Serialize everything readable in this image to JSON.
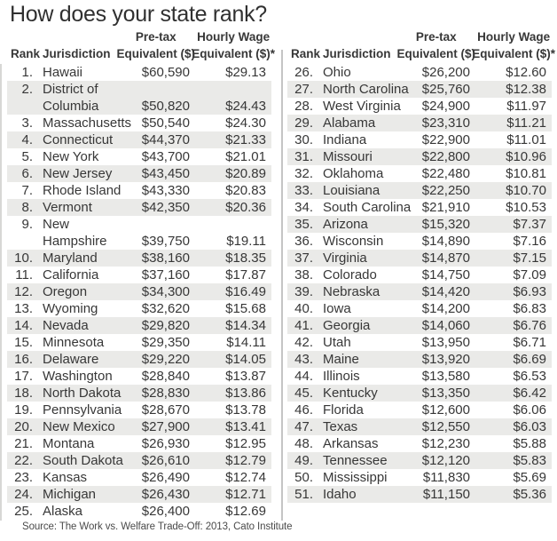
{
  "title": "How does your state rank?",
  "source": "Source: The Work vs. Welfare Trade-Off: 2013, Cato Institute",
  "header": {
    "rank": "Rank",
    "jurisdiction": "Jurisdiction",
    "pretax_line1": "Pre-tax",
    "pretax_line2": "Equivalent ($)",
    "hourly_line1": "Hourly Wage",
    "hourly_line2": "Equivalent ($)*"
  },
  "colors": {
    "background": "#ffffff",
    "title": "#303030",
    "text": "#373737",
    "stripe": "#eaeae8",
    "divider": "#c4c4c4",
    "edge_rule": "#d7d7d5",
    "source_text": "#4a4a4a"
  },
  "chart_data": {
    "type": "table",
    "title": "How does your state rank?",
    "columns": [
      "Rank",
      "Jurisdiction",
      "Pre-tax Equivalent ($)",
      "Hourly Wage Equivalent ($)*"
    ],
    "left_rows": [
      [
        "1.",
        "Hawaii",
        "$60,590",
        "$29.13"
      ],
      [
        "2.",
        "District of\nColumbia",
        "$50,820",
        "$24.43"
      ],
      [
        "3.",
        "Massachusetts",
        "$50,540",
        "$24.30"
      ],
      [
        "4.",
        "Connecticut",
        "$44,370",
        "$21.33"
      ],
      [
        "5.",
        "New York",
        "$43,700",
        "$21.01"
      ],
      [
        "6.",
        "New Jersey",
        "$43,450",
        "$20.89"
      ],
      [
        "7.",
        "Rhode Island",
        "$43,330",
        "$20.83"
      ],
      [
        "8.",
        "Vermont",
        "$42,350",
        "$20.36"
      ],
      [
        "9.",
        "New\nHampshire",
        "$39,750",
        "$19.11"
      ],
      [
        "10.",
        "Maryland",
        "$38,160",
        "$18.35"
      ],
      [
        "11.",
        "California",
        "$37,160",
        "$17.87"
      ],
      [
        "12.",
        "Oregon",
        "$34,300",
        "$16.49"
      ],
      [
        "13.",
        "Wyoming",
        "$32,620",
        "$15.68"
      ],
      [
        "14.",
        "Nevada",
        "$29,820",
        "$14.34"
      ],
      [
        "15.",
        "Minnesota",
        "$29,350",
        "$14.11"
      ],
      [
        "16.",
        "Delaware",
        "$29,220",
        "$14.05"
      ],
      [
        "17.",
        "Washington",
        "$28,840",
        "$13.87"
      ],
      [
        "18.",
        "North Dakota",
        "$28,830",
        "$13.86"
      ],
      [
        "19.",
        "Pennsylvania",
        "$28,670",
        "$13.78"
      ],
      [
        "20.",
        "New Mexico",
        "$27,900",
        "$13.41"
      ],
      [
        "21.",
        "Montana",
        "$26,930",
        "$12.95"
      ],
      [
        "22.",
        "South Dakota",
        "$26,610",
        "$12.79"
      ],
      [
        "23.",
        "Kansas",
        "$26,490",
        "$12.74"
      ],
      [
        "24.",
        "Michigan",
        "$26,430",
        "$12.71"
      ],
      [
        "25.",
        "Alaska",
        "$26,400",
        "$12.69"
      ]
    ],
    "right_rows": [
      [
        "26.",
        "Ohio",
        "$26,200",
        "$12.60"
      ],
      [
        "27.",
        "North Carolina",
        "$25,760",
        "$12.38"
      ],
      [
        "28.",
        "West Virginia",
        "$24,900",
        "$11.97"
      ],
      [
        "29.",
        "Alabama",
        "$23,310",
        "$11.21"
      ],
      [
        "30.",
        "Indiana",
        "$22,900",
        "$11.01"
      ],
      [
        "31.",
        "Missouri",
        "$22,800",
        "$10.96"
      ],
      [
        "32.",
        "Oklahoma",
        "$22,480",
        "$10.81"
      ],
      [
        "33.",
        "Louisiana",
        "$22,250",
        "$10.70"
      ],
      [
        "34.",
        "South Carolina",
        "$21,910",
        "$10.53"
      ],
      [
        "35.",
        "Arizona",
        "$15,320",
        "$7.37"
      ],
      [
        "36.",
        "Wisconsin",
        "$14,890",
        "$7.16"
      ],
      [
        "37.",
        "Virginia",
        "$14,870",
        "$7.15"
      ],
      [
        "38.",
        "Colorado",
        "$14,750",
        "$7.09"
      ],
      [
        "39.",
        "Nebraska",
        "$14,420",
        "$6.93"
      ],
      [
        "40.",
        "Iowa",
        "$14,200",
        "$6.83"
      ],
      [
        "41.",
        "Georgia",
        "$14,060",
        "$6.76"
      ],
      [
        "42.",
        "Utah",
        "$13,950",
        "$6.71"
      ],
      [
        "43.",
        "Maine",
        "$13,920",
        "$6.69"
      ],
      [
        "44.",
        "Illinois",
        "$13,580",
        "$6.53"
      ],
      [
        "45.",
        "Kentucky",
        "$13,350",
        "$6.42"
      ],
      [
        "46.",
        "Florida",
        "$12,600",
        "$6.06"
      ],
      [
        "47.",
        "Texas",
        "$12,550",
        "$6.03"
      ],
      [
        "48.",
        "Arkansas",
        "$12,230",
        "$5.88"
      ],
      [
        "49.",
        "Tennessee",
        "$12,120",
        "$5.83"
      ],
      [
        "50.",
        "Mississippi",
        "$11,830",
        "$5.69"
      ],
      [
        "51.",
        "Idaho",
        "$11,150",
        "$5.36"
      ]
    ],
    "source": "Source: The Work vs. Welfare Trade-Off: 2013, Cato Institute"
  }
}
